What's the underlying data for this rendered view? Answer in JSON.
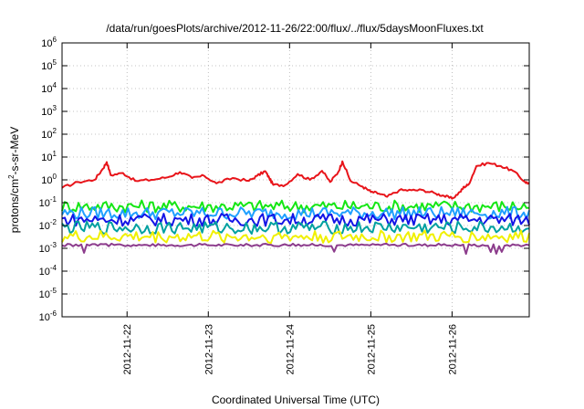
{
  "chart_data": {
    "type": "line",
    "title": "/data/run/goesPlots/archive/2012-11-26/22:00/flux/../flux/5daysMoonFluxes.txt",
    "xlabel": "Coordinated Universal Time (UTC)",
    "ylabel": {
      "main": "protons/cm",
      "sup": "2",
      "rest": "-s-sr-MeV"
    },
    "yscale": "log",
    "ylim": [
      1e-06,
      1000000.0
    ],
    "xlim_days": [
      21.2,
      26.95
    ],
    "grid": true,
    "legend": "none",
    "x_ticks": [
      {
        "label": "2012-11-22",
        "day": 22
      },
      {
        "label": "2012-11-23",
        "day": 23
      },
      {
        "label": "2012-11-24",
        "day": 24
      },
      {
        "label": "2012-11-25",
        "day": 25
      },
      {
        "label": "2012-11-26",
        "day": 26
      }
    ],
    "y_ticks": [
      {
        "exp": -6
      },
      {
        "exp": -5
      },
      {
        "exp": -4
      },
      {
        "exp": -3
      },
      {
        "exp": -2
      },
      {
        "exp": -1
      },
      {
        "exp": 0
      },
      {
        "exp": 1
      },
      {
        "exp": 2
      },
      {
        "exp": 3
      },
      {
        "exp": 4
      },
      {
        "exp": 5
      },
      {
        "exp": 6
      }
    ],
    "series": [
      {
        "color": "#e8141a",
        "x": [
          21.2,
          21.4,
          21.6,
          21.7,
          21.75,
          21.8,
          21.95,
          22.1,
          22.3,
          22.5,
          22.65,
          22.8,
          22.95,
          23.1,
          23.3,
          23.5,
          23.6,
          23.7,
          23.75,
          23.8,
          23.95,
          24.1,
          24.25,
          24.4,
          24.5,
          24.6,
          24.65,
          24.75,
          24.9,
          25.0,
          25.1,
          25.2,
          25.35,
          25.5,
          25.65,
          25.8,
          25.9,
          26.0,
          26.1,
          26.15,
          26.2,
          26.3,
          26.45,
          26.6,
          26.75,
          26.9,
          26.95
        ],
        "y": [
          0.45,
          0.8,
          1.0,
          3.0,
          6.0,
          1.6,
          2.0,
          0.9,
          1.0,
          1.3,
          2.2,
          1.2,
          1.5,
          0.7,
          1.2,
          0.9,
          1.5,
          2.4,
          1.2,
          0.6,
          0.6,
          1.8,
          1.0,
          2.5,
          0.8,
          2.2,
          6.5,
          0.9,
          0.5,
          0.3,
          0.25,
          0.18,
          0.35,
          0.35,
          0.35,
          0.25,
          0.2,
          0.15,
          0.3,
          0.5,
          0.6,
          4.0,
          5.5,
          4.0,
          2.5,
          0.8,
          0.7
        ]
      },
      {
        "color": "#14e614",
        "x": [
          21.2,
          26.95
        ],
        "y": [
          0.07,
          0.07
        ]
      },
      {
        "color": "#1fa0ff",
        "x": [
          21.2,
          26.95
        ],
        "y": [
          0.035,
          0.035
        ]
      },
      {
        "color": "#1414e6",
        "x": [
          21.2,
          26.95
        ],
        "y": [
          0.018,
          0.018
        ]
      },
      {
        "color": "#00a0a0",
        "x": [
          21.2,
          26.95
        ],
        "y": [
          0.008,
          0.008
        ]
      },
      {
        "color": "#f0f000",
        "x": [
          21.2,
          26.95
        ],
        "y": [
          0.0032,
          0.0032
        ]
      },
      {
        "color": "#8c3c8c",
        "x": [
          21.2,
          26.95
        ],
        "y": [
          0.0014,
          0.0014
        ]
      }
    ]
  }
}
